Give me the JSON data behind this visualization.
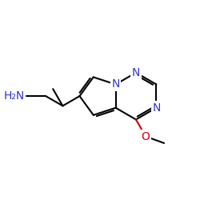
{
  "bg": "#ffffff",
  "bond_color": "#000000",
  "n_color": "#3333cc",
  "o_color": "#cc0000",
  "font_size": 9,
  "bold_font_size": 9,
  "lw": 1.5,
  "atoms": {
    "N_label": "N",
    "O_label": "O",
    "H2N_label": "H₂N"
  }
}
